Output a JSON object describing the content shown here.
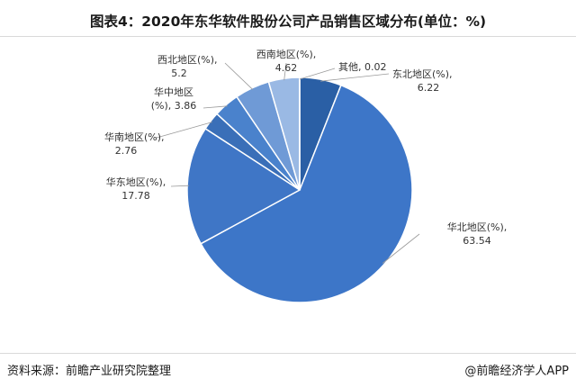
{
  "title": "图表4：2020年东华软件股份公司产品销售区域分布(单位：%)",
  "footer": {
    "source": "资料来源：前瞻产业研究院整理",
    "credit": "@前瞻经济学人APP"
  },
  "chart_data": {
    "type": "pie",
    "title": "图表4：2020年东华软件股份公司产品销售区域分布(单位：%)",
    "start_angle_deg": 0,
    "direction": "clockwise",
    "slices": [
      {
        "label_line1": "东北地区(%),",
        "label_line2": "6.22",
        "value": 6.22,
        "color": "#2a5fa5"
      },
      {
        "label_line1": "华北地区(%),",
        "label_line2": "63.54",
        "value": 63.54,
        "color": "#3d76c8"
      },
      {
        "label_line1": "华东地区(%),",
        "label_line2": "17.78",
        "value": 17.78,
        "color": "#3f76c6"
      },
      {
        "label_line1": "华南地区(%),",
        "label_line2": "2.76",
        "value": 2.76,
        "color": "#3a6fb8"
      },
      {
        "label_line1": "华中地区",
        "label_line2": "(%), 3.86",
        "value": 3.86,
        "color": "#4a82cc"
      },
      {
        "label_line1": "西北地区(%),",
        "label_line2": "5.2",
        "value": 5.2,
        "color": "#6f9ad6"
      },
      {
        "label_line1": "西南地区(%),",
        "label_line2": "4.62",
        "value": 4.62,
        "color": "#9ab9e4"
      },
      {
        "label_line1": "其他, 0.02",
        "label_line2": "",
        "value": 0.02,
        "color": "#1f4e8c"
      }
    ]
  }
}
